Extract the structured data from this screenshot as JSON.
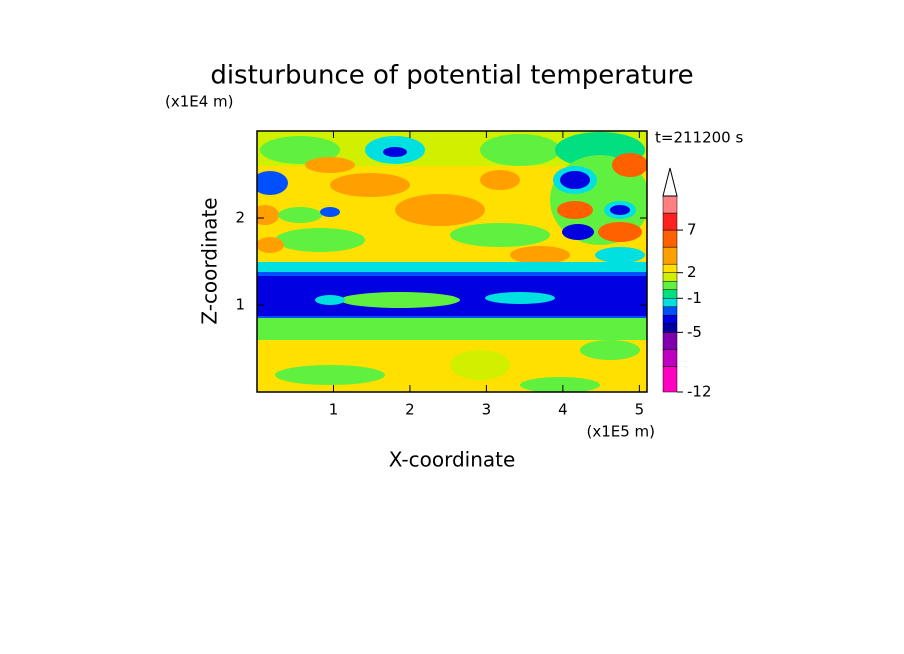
{
  "chart_data": {
    "type": "contour",
    "title": "disturbunce of potential temperature",
    "x_label": "X-coordinate",
    "y_label": "Z-coordinate",
    "x_unit": "(x1E5 m)",
    "y_unit": "(x1E4 m)",
    "annotation": "t=211200 s",
    "xlim": [
      0,
      5.1
    ],
    "ylim": [
      0,
      3
    ],
    "xticks": [
      1,
      2,
      3,
      4,
      5
    ],
    "yticks": [
      1,
      2
    ],
    "colorbar": {
      "lim": [
        -12,
        11
      ],
      "extend": "max",
      "levels": [
        -12,
        -9,
        -7,
        -5,
        -4,
        -3,
        -2,
        -1,
        0,
        1,
        2,
        3,
        5,
        7,
        9,
        11
      ],
      "colors": [
        "#ff00c0",
        "#c000c0",
        "#8000b0",
        "#0000a0",
        "#0000e0",
        "#0050ff",
        "#00e0e0",
        "#00e080",
        "#60f040",
        "#d0f000",
        "#ffe000",
        "#ffa000",
        "#ff6000",
        "#ff2020",
        "#ff8080"
      ],
      "ticks": [
        -12,
        -5,
        -1,
        2,
        7
      ]
    }
  }
}
